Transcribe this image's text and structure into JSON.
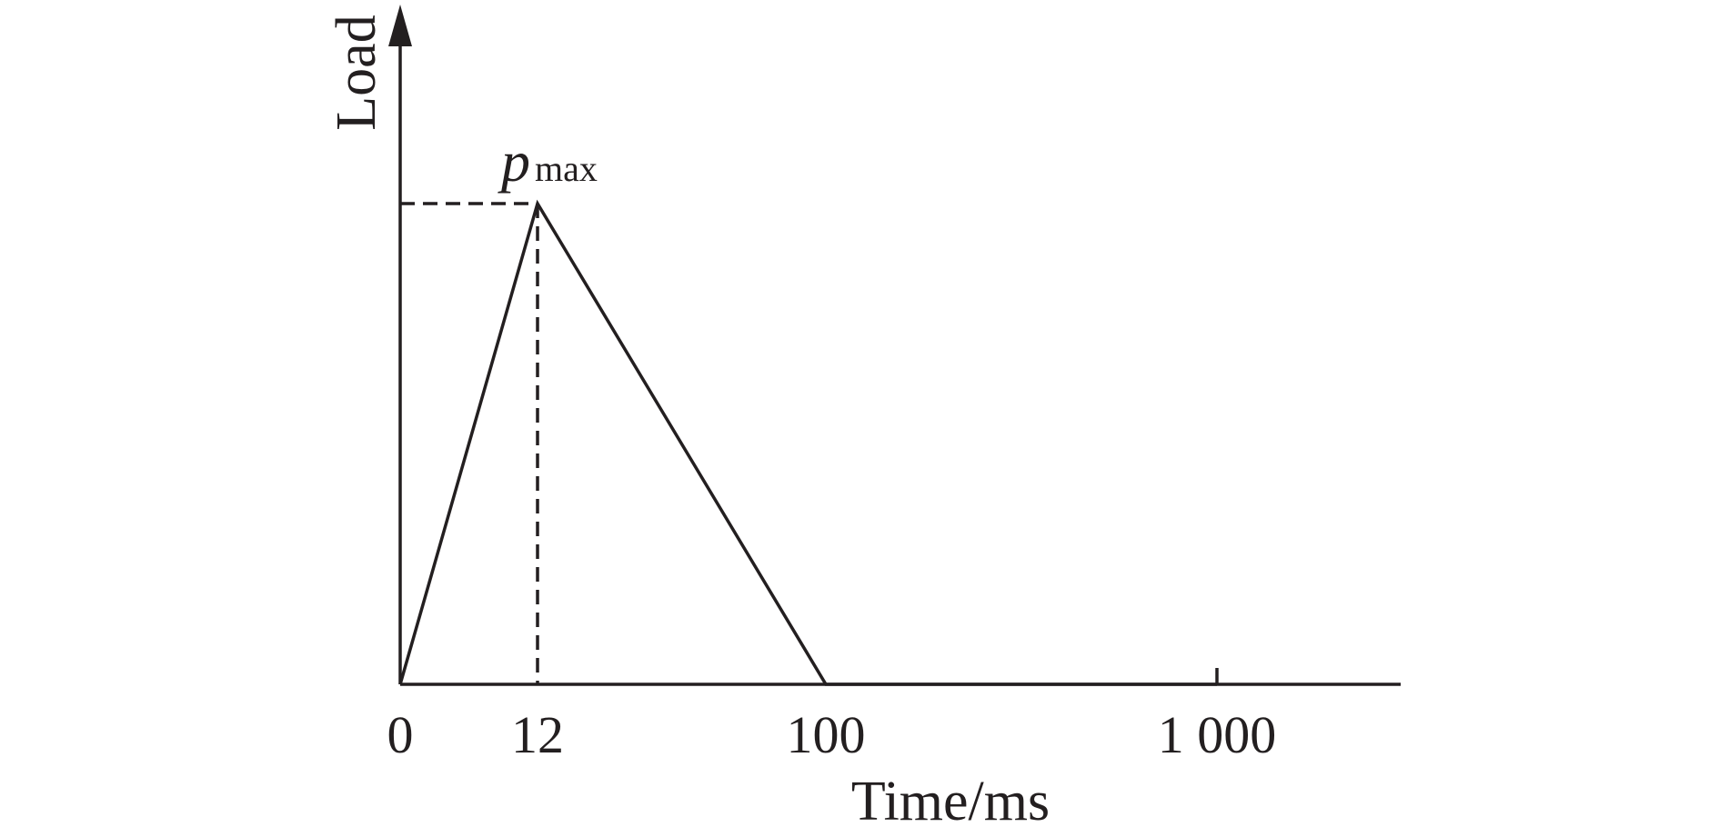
{
  "chart_data": {
    "type": "line",
    "xlabel": "Time/ms",
    "ylabel": "Load",
    "x_tick_labels": [
      "0",
      "12",
      "100",
      "1 000"
    ],
    "x_ticks": [
      0,
      12,
      100,
      1000
    ],
    "x_scale": "piecewise",
    "grid": false,
    "series": [
      {
        "points": [
          {
            "x": 0,
            "y": 0
          },
          {
            "x": 12,
            "y": 1
          },
          {
            "x": 100,
            "y": 0
          },
          {
            "x": 1000,
            "y": 0
          }
        ]
      }
    ],
    "annotations": [
      {
        "base": "p",
        "subscript": "max",
        "x": 12,
        "y": 1
      }
    ],
    "colors": {
      "ink": "#231f20"
    }
  }
}
